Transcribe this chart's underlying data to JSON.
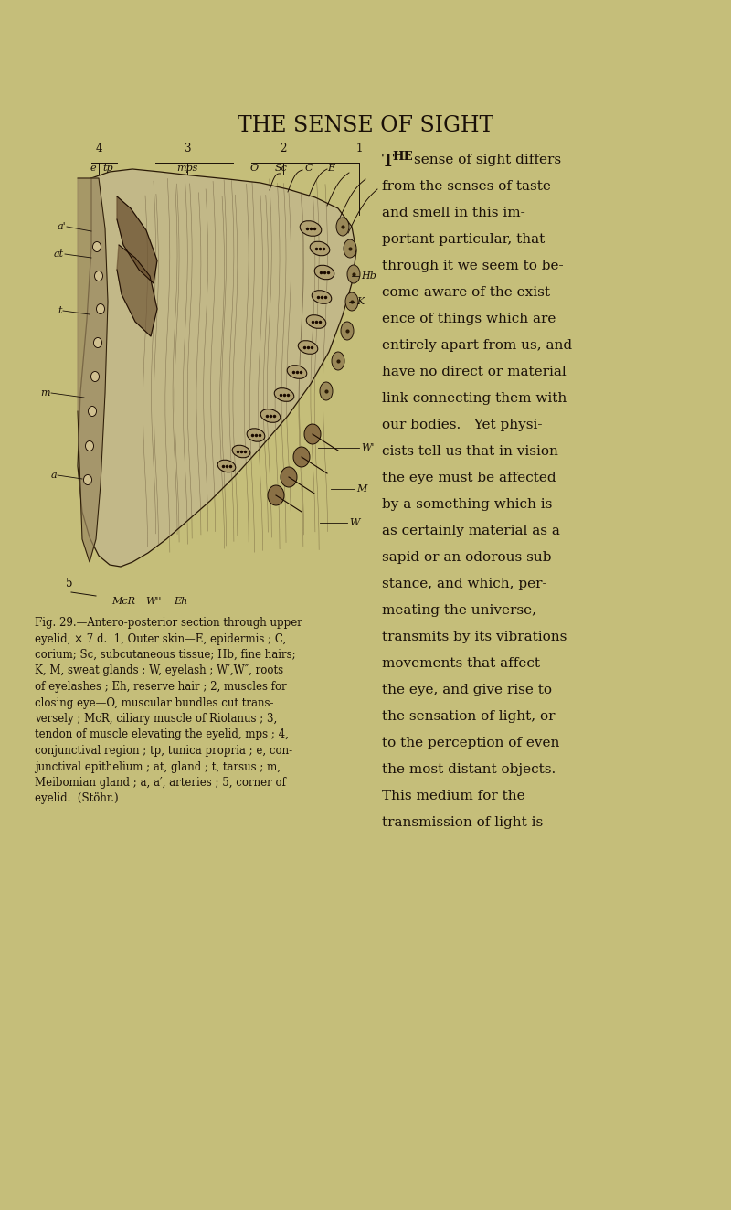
{
  "bg_color": "#c5be7a",
  "title": "THE SENSE OF SIGHT",
  "title_fontsize": 17,
  "title_color": "#1a1008",
  "text_color": "#1a1008",
  "caption_color": "#1a1008",
  "body_lines": [
    "from the senses of taste",
    "and smell in this im-",
    "portant particular, that",
    "through it we seem to be-",
    "come aware of the exist-",
    "ence of things which are",
    "entirely apart from us, and",
    "have no direct or material",
    "link connecting them with",
    "our bodies.   Yet physi-",
    "cists tell us that in vision",
    "the eye must be affected",
    "by a something which is",
    "as certainly material as a",
    "sapid or an odorous sub-",
    "stance, and which, per-",
    "meating the universe,",
    "transmits by its vibrations",
    "movements that affect",
    "the eye, and give rise to",
    "the sensation of light, or",
    "to the perception of even",
    "the most distant objects.",
    "This medium for the",
    "transmission of light is"
  ],
  "caption_lines": [
    "Fig. 29.—Antero-posterior section through upper",
    "eyelid, × 7 d.  1, Outer skin—E, epidermis ; C,",
    "corium; Sc, subcutaneous tissue; Hb, fine hairs;",
    "K, M, sweat glands ; W, eyelash ; W′,W″, roots",
    "of eyelashes ; Eh, reserve hair ; 2, muscles for",
    "closing eye—O, muscular bundles cut trans-",
    "versely ; McR, ciliary muscle of Riolanus ; 3,",
    "tendon of muscle elevating the eyelid, mps ; 4,",
    "conjunctival region ; tp, tunica propria ; e, con-",
    "junctival epithelium ; at, gland ; t, tarsus ; m,",
    "Meibomian gland ; a, a′, arteries ; 5, corner of",
    "eyelid.  (Stöhr.)"
  ]
}
